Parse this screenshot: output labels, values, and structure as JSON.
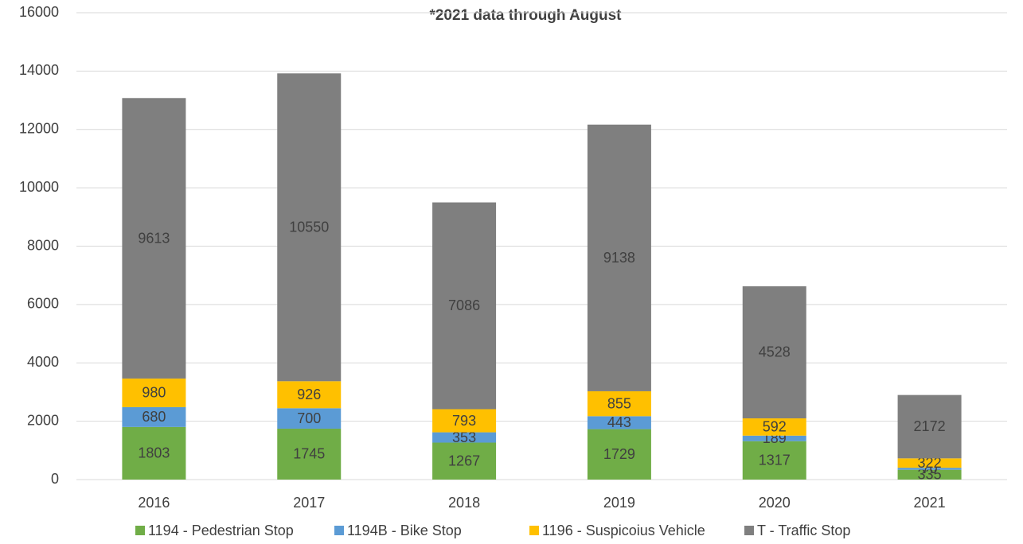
{
  "chart_data": {
    "type": "stacked_bar",
    "title": "*2021 data through August",
    "categories": [
      "2016",
      "2017",
      "2018",
      "2019",
      "2020",
      "2021"
    ],
    "series": [
      {
        "name": "1194 - Pedestrian Stop",
        "color": "#70ad47",
        "values": [
          1803,
          1745,
          1267,
          1729,
          1317,
          335
        ]
      },
      {
        "name": "1194B - Bike Stop",
        "color": "#5b9bd5",
        "values": [
          680,
          700,
          353,
          443,
          189,
          70
        ]
      },
      {
        "name": "1196 - Suspicoius Vehicle",
        "color": "#ffc000",
        "values": [
          980,
          926,
          793,
          855,
          592,
          322
        ]
      },
      {
        "name": "T - Traffic Stop",
        "color": "#7f7f7f",
        "values": [
          9613,
          10550,
          7086,
          9138,
          4528,
          2172
        ]
      }
    ],
    "ylim": [
      0,
      16000
    ],
    "yticks": [
      0,
      2000,
      4000,
      6000,
      8000,
      10000,
      12000,
      14000,
      16000
    ],
    "grid": true,
    "legend": "bottom"
  }
}
